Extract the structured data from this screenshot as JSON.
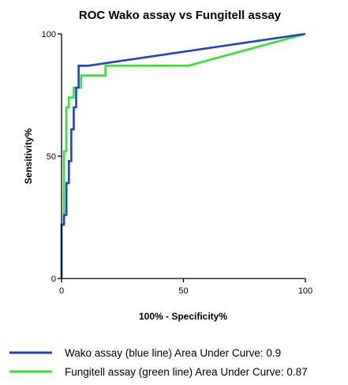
{
  "chart_data": {
    "type": "line",
    "title": "ROC Wako assay vs Fungitell assay",
    "xlabel": "100% - Specificity%",
    "ylabel": "Sensitivity%",
    "xlim": [
      0,
      100
    ],
    "ylim": [
      0,
      100
    ],
    "xticks": [
      0,
      50,
      100
    ],
    "yticks": [
      0,
      50,
      100
    ],
    "grid": false,
    "legend_position": "bottom",
    "series": [
      {
        "name": "Wako assay (blue line) Area Under Curve: 0.9",
        "color": "#1f3fd6",
        "x": [
          0,
          0,
          1,
          1,
          2,
          2,
          3,
          3,
          4,
          4,
          5,
          5,
          6,
          6,
          7,
          7,
          11,
          100
        ],
        "y": [
          0,
          22,
          22,
          26,
          26,
          39,
          39,
          48,
          48,
          61,
          61,
          70,
          70,
          78,
          78,
          87,
          87,
          100
        ]
      },
      {
        "name": "Fungitell assay (green line) Area Under Curve: 0.87",
        "color": "#2ee82e",
        "x": [
          0,
          0,
          1,
          1,
          2,
          2,
          3,
          3,
          5,
          5,
          8,
          8,
          18,
          18,
          52,
          100
        ],
        "y": [
          0,
          22,
          22,
          52,
          52,
          70,
          70,
          74,
          74,
          78,
          78,
          83,
          83,
          87,
          87,
          100
        ]
      }
    ]
  }
}
